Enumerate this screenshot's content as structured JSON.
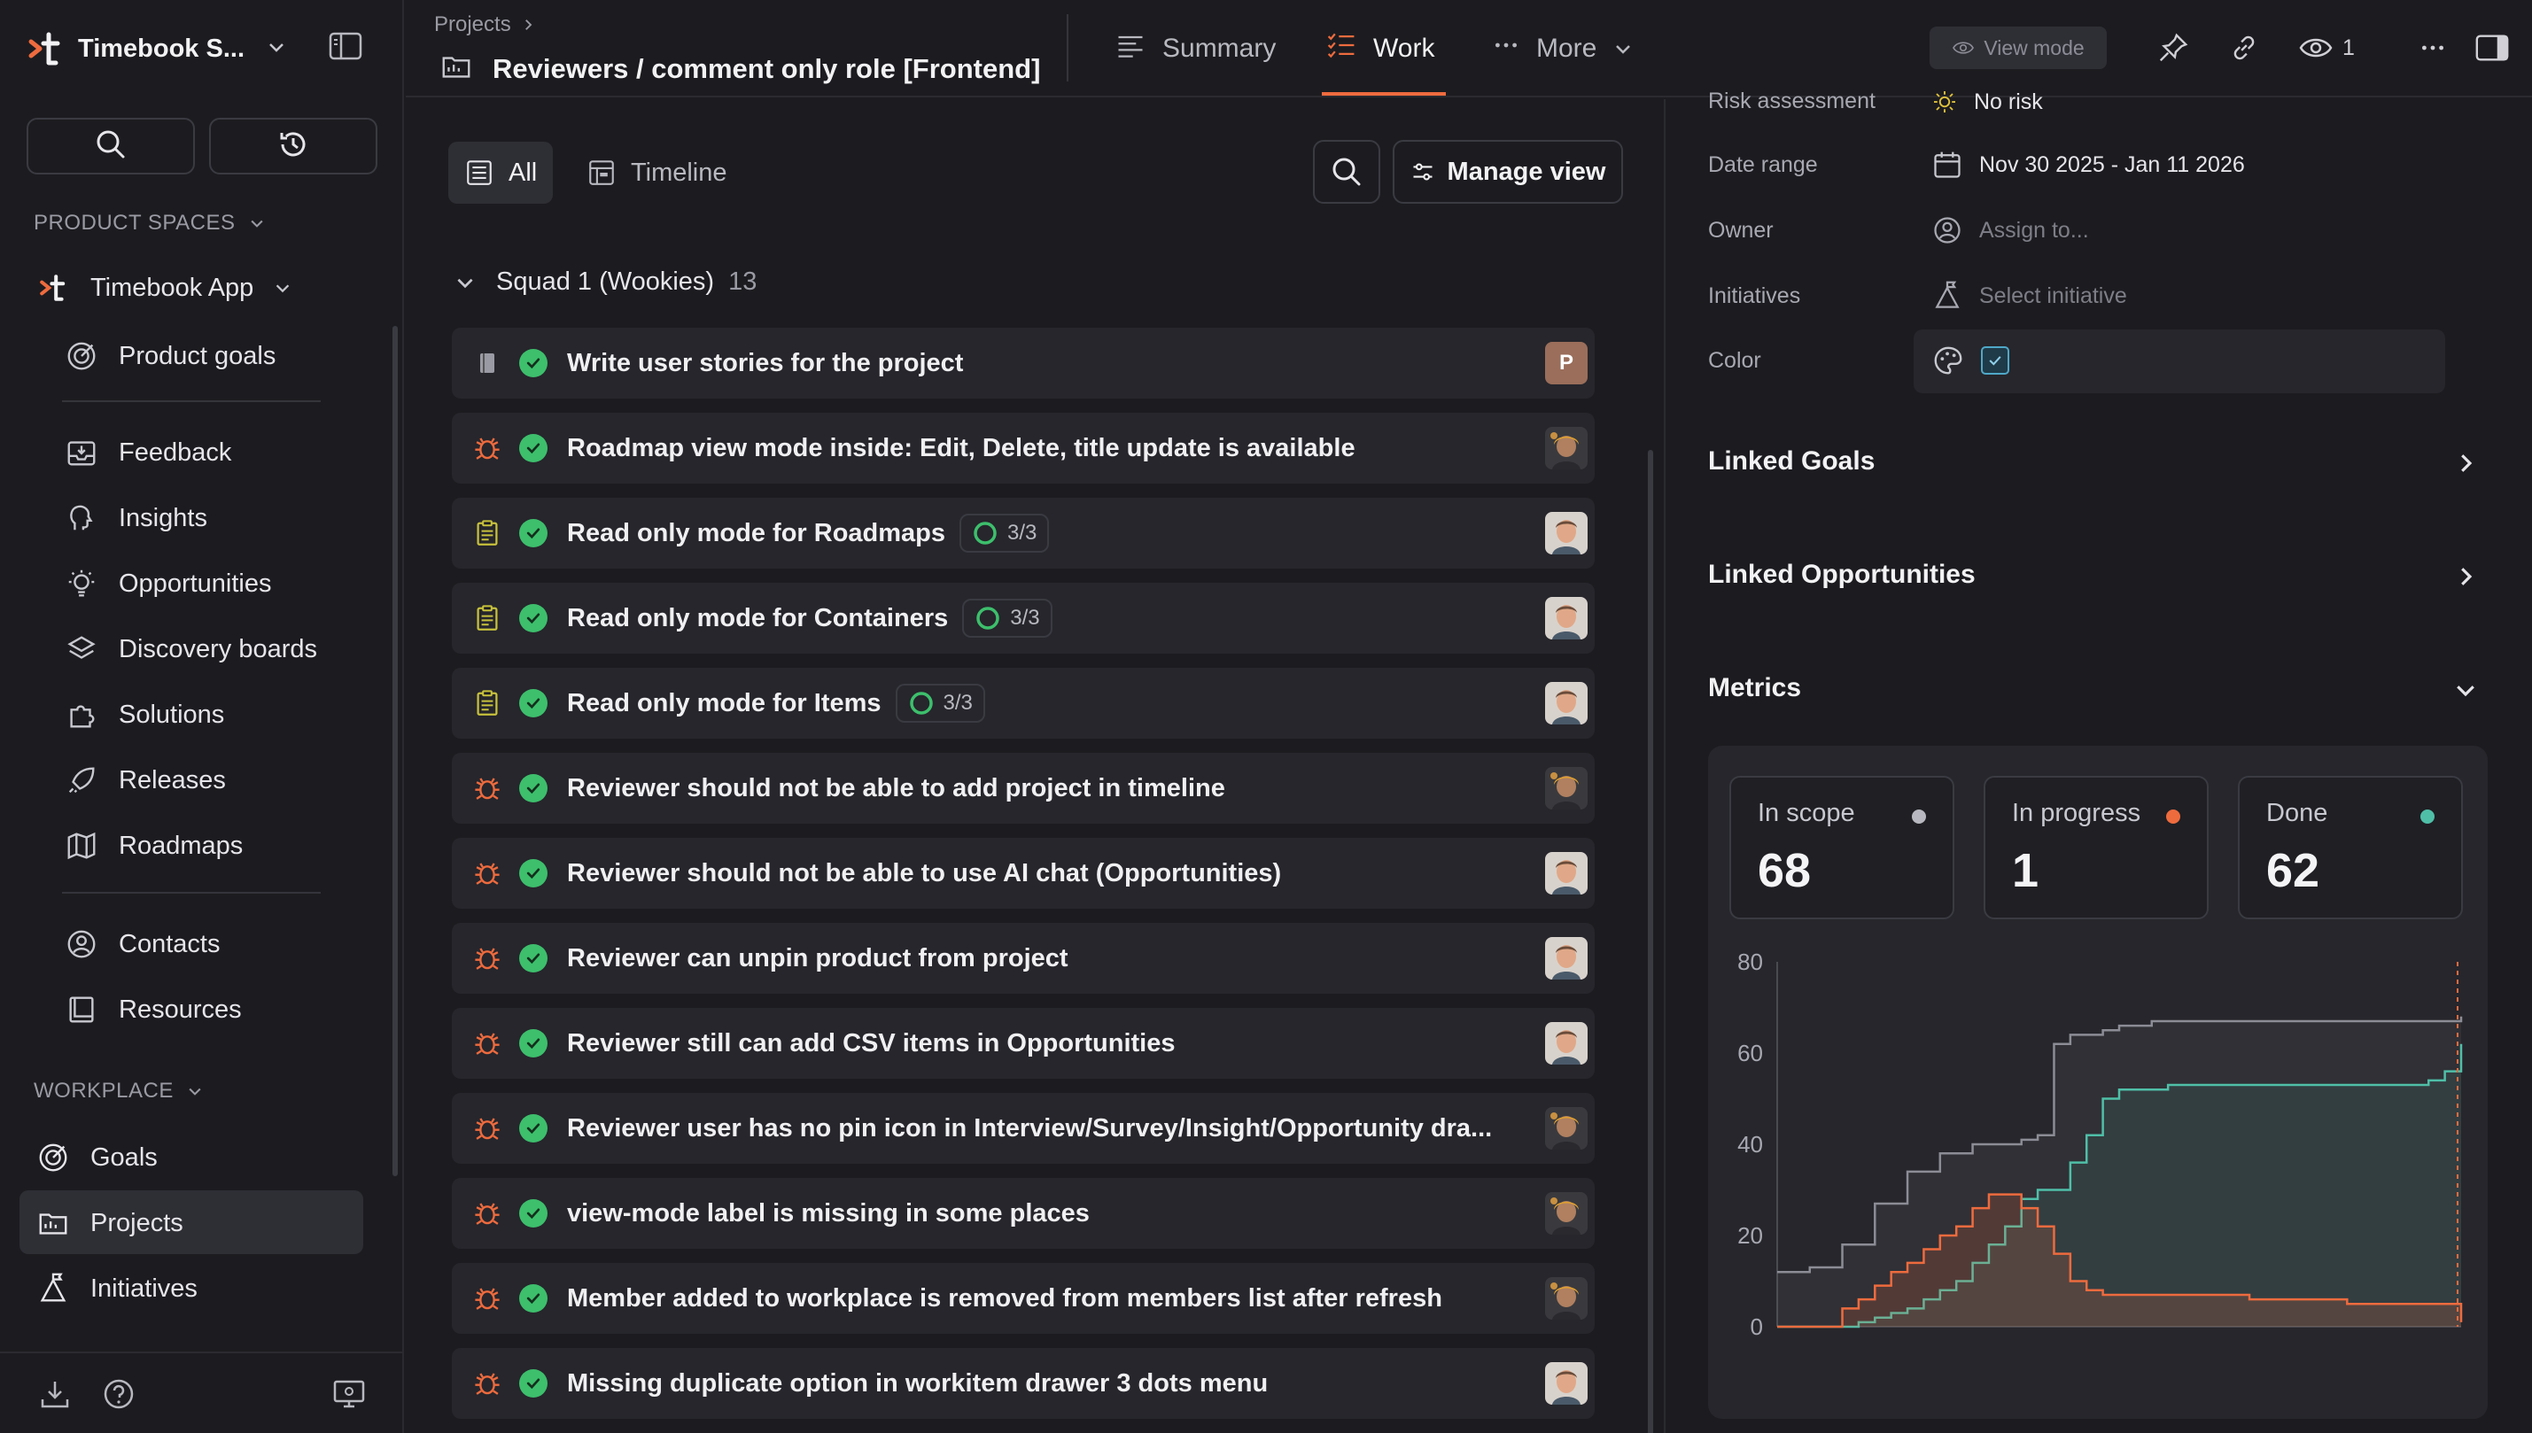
{
  "colors": {
    "accent": "#ee6b3e",
    "done": "#3dbf6c",
    "teal": "#4fbfa8",
    "scope": "#8c8c96"
  },
  "workspace": {
    "name": "Timebook S..."
  },
  "sidebar": {
    "product_spaces_label": "PRODUCT SPACES",
    "app_name": "Timebook App",
    "group1": [
      {
        "label": "Product goals",
        "icon": "target-icon"
      }
    ],
    "group2": [
      {
        "label": "Feedback",
        "icon": "inbox-icon"
      },
      {
        "label": "Insights",
        "icon": "brain-icon"
      },
      {
        "label": "Opportunities",
        "icon": "lightbulb-icon"
      },
      {
        "label": "Discovery boards",
        "icon": "layers-icon"
      },
      {
        "label": "Solutions",
        "icon": "puzzle-icon"
      },
      {
        "label": "Releases",
        "icon": "rocket-icon"
      },
      {
        "label": "Roadmaps",
        "icon": "map-icon"
      }
    ],
    "group3": [
      {
        "label": "Contacts",
        "icon": "contact-icon"
      },
      {
        "label": "Resources",
        "icon": "book-icon"
      }
    ],
    "workplace_label": "WORKPLACE",
    "workplace": [
      {
        "label": "Goals",
        "icon": "target-icon"
      },
      {
        "label": "Projects",
        "icon": "folder-icon",
        "active": true
      },
      {
        "label": "Initiatives",
        "icon": "initiative-icon"
      }
    ]
  },
  "header": {
    "breadcrumb": "Projects",
    "title": "Reviewers / comment only role [Frontend]",
    "tabs": [
      {
        "label": "Summary",
        "icon": "summary-icon"
      },
      {
        "label": "Work",
        "icon": "checklist-icon",
        "active": true
      },
      {
        "label": "More",
        "icon": "dots-icon"
      }
    ],
    "view_mode": "View mode",
    "watchers": "1"
  },
  "main": {
    "view_tabs": [
      {
        "label": "All",
        "active": true
      },
      {
        "label": "Timeline"
      }
    ],
    "manage_view": "Manage view",
    "group": {
      "name": "Squad 1 (Wookies)",
      "count": "13"
    },
    "rows": [
      {
        "type": "story",
        "name": "Write user stories for the project",
        "avatar": "P",
        "avatar_kind": "letter"
      },
      {
        "type": "bug",
        "name": "Roadmap view mode inside: Edit, Delete, title update is available",
        "avatar_kind": "dark"
      },
      {
        "type": "task",
        "name": "Read only mode for Roadmaps",
        "progress": "3/3",
        "avatar_kind": "light"
      },
      {
        "type": "task",
        "name": "Read only mode for Containers",
        "progress": "3/3",
        "avatar_kind": "light"
      },
      {
        "type": "task",
        "name": "Read only mode for Items",
        "progress": "3/3",
        "avatar_kind": "light"
      },
      {
        "type": "bug",
        "name": "Reviewer should not be able to add project in timeline",
        "avatar_kind": "dark"
      },
      {
        "type": "bug",
        "name": "Reviewer should not be able to use AI chat (Opportunities)",
        "avatar_kind": "light"
      },
      {
        "type": "bug",
        "name": "Reviewer can unpin product from project",
        "avatar_kind": "light"
      },
      {
        "type": "bug",
        "name": "Reviewer still can add CSV items in Opportunities",
        "avatar_kind": "light"
      },
      {
        "type": "bug",
        "name": "Reviewer user has no pin icon in Interview/Survey/Insight/Opportunity dra...",
        "avatar_kind": "dark"
      },
      {
        "type": "bug",
        "name": "view-mode label is missing in some places",
        "avatar_kind": "dark"
      },
      {
        "type": "bug",
        "name": "Member added to workplace is removed from members list after refresh",
        "avatar_kind": "dark"
      },
      {
        "type": "bug",
        "name": "Missing duplicate option in workitem drawer 3 dots menu",
        "avatar_kind": "light"
      }
    ]
  },
  "panel": {
    "props": [
      {
        "label": "Risk assessment",
        "value": "No risk",
        "icon": "sun-icon"
      },
      {
        "label": "Date range",
        "value": "Nov 30 2025 - Jan 11 2026",
        "icon": "calendar-icon"
      },
      {
        "label": "Owner",
        "value": "Assign to...",
        "icon": "user-icon",
        "muted": true
      },
      {
        "label": "Initiatives",
        "value": "Select initiative",
        "icon": "initiative-icon",
        "muted": true
      },
      {
        "label": "Color",
        "icon": "palette-icon"
      }
    ],
    "sections": [
      "Linked Goals",
      "Linked Opportunities",
      "Metrics"
    ],
    "metrics": [
      {
        "label": "In scope",
        "value": "68",
        "color": "#8c8c96"
      },
      {
        "label": "In progress",
        "value": "1",
        "color": "#ee6b3e"
      },
      {
        "label": "Done",
        "value": "62",
        "color": "#4fbfa8"
      }
    ]
  },
  "chart_data": {
    "type": "area",
    "ylim": [
      0,
      80
    ],
    "yticks": [
      "0",
      "20",
      "40",
      "60",
      "80"
    ],
    "x": [
      0,
      1,
      2,
      3,
      4,
      5,
      6,
      7,
      8,
      9,
      10,
      11,
      12,
      13,
      14,
      15,
      16,
      17,
      18,
      19,
      20,
      21,
      22,
      23,
      24,
      25,
      26,
      27,
      28,
      29,
      30,
      31,
      32,
      33,
      34,
      35,
      36,
      37,
      38,
      39,
      40,
      41,
      42
    ],
    "series": [
      {
        "color": "#8c8c96",
        "values": [
          12,
          12,
          13,
          13,
          18,
          18,
          27,
          27,
          34,
          34,
          38,
          38,
          40,
          40,
          40,
          41,
          42,
          62,
          64,
          64,
          65,
          66,
          66,
          67,
          67,
          67,
          67,
          67,
          67,
          67,
          67,
          67,
          67,
          67,
          67,
          67,
          67,
          67,
          67,
          67,
          67,
          67,
          68
        ]
      },
      {
        "color": "#4fbfa8",
        "values": [
          0,
          0,
          0,
          0,
          0,
          1,
          2,
          3,
          4,
          6,
          8,
          10,
          14,
          18,
          22,
          28,
          30,
          30,
          36,
          42,
          50,
          52,
          52,
          52,
          53,
          53,
          53,
          53,
          53,
          53,
          53,
          53,
          53,
          53,
          53,
          53,
          53,
          53,
          53,
          53,
          54,
          56,
          62
        ]
      },
      {
        "color": "#ee6b3e",
        "values": [
          0,
          0,
          0,
          0,
          4,
          6,
          9,
          12,
          14,
          17,
          20,
          22,
          26,
          29,
          29,
          26,
          22,
          16,
          10,
          8,
          7,
          7,
          7,
          7,
          7,
          7,
          7,
          7,
          7,
          6,
          6,
          6,
          6,
          6,
          6,
          5,
          5,
          5,
          5,
          5,
          5,
          5,
          1
        ]
      }
    ]
  }
}
